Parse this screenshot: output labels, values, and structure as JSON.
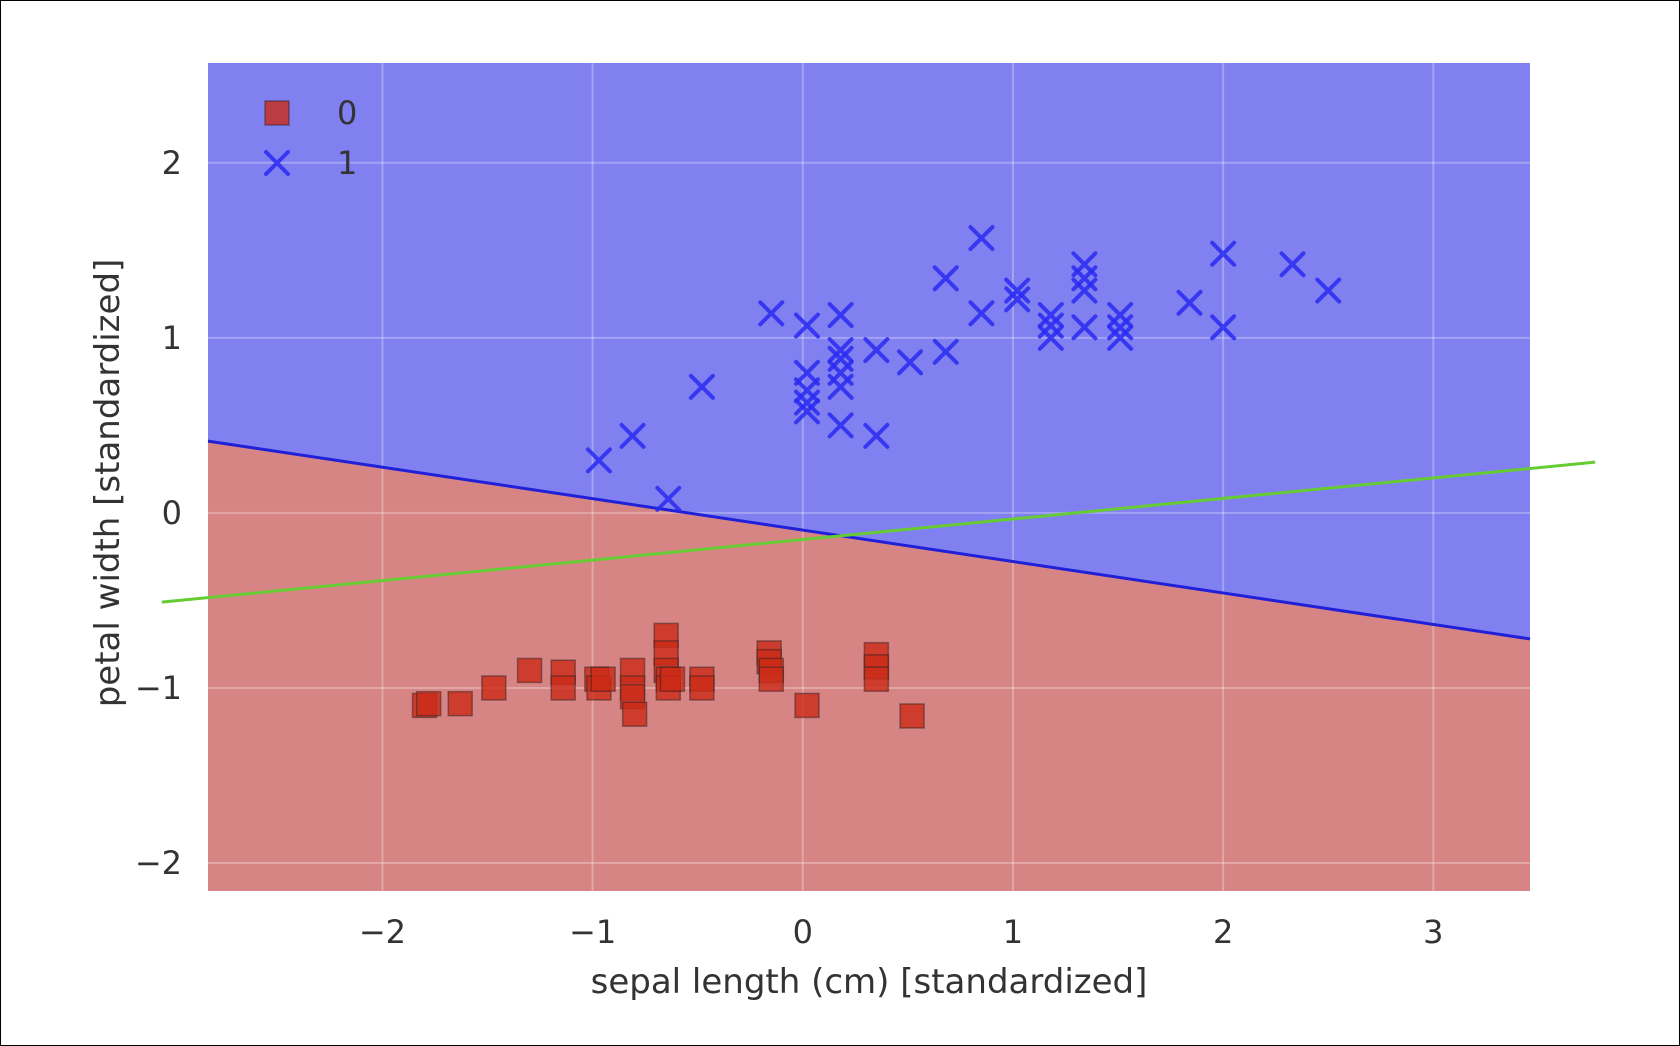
{
  "chart_data": {
    "type": "scatter",
    "title": "",
    "xlabel": "sepal length (cm) [standardized]",
    "ylabel": "petal width [standardized]",
    "xlim": [
      -2.83,
      3.46
    ],
    "ylim": [
      -2.16,
      2.57
    ],
    "xticks": [
      -2,
      -1,
      0,
      1,
      2,
      3
    ],
    "yticks": [
      -2,
      -1,
      0,
      1,
      2
    ],
    "xtick_labels": [
      "−2",
      "−1",
      "0",
      "1",
      "2",
      "3"
    ],
    "ytick_labels": [
      "−2",
      "−1",
      "0",
      "1",
      "2"
    ],
    "grid": true,
    "legend_position": "top-left",
    "decision_regions": {
      "boundary": [
        [
          -2.83,
          0.41
        ],
        [
          3.46,
          -0.72
        ]
      ],
      "above_class": "1",
      "below_class": "0",
      "colors": {
        "0": "#d68484",
        "1": "#8080f0"
      }
    },
    "line": {
      "points": [
        [
          -3.05,
          -0.51
        ],
        [
          3.77,
          0.29
        ]
      ],
      "color": "#66cc33"
    },
    "series": [
      {
        "name": "0",
        "marker": "square",
        "color": "#cc2a18",
        "points": [
          [
            -1.8,
            -1.1
          ],
          [
            -1.78,
            -1.09
          ],
          [
            -1.63,
            -1.09
          ],
          [
            -1.47,
            -1.0
          ],
          [
            -1.3,
            -0.9
          ],
          [
            -1.14,
            -0.91
          ],
          [
            -1.14,
            -1.0
          ],
          [
            -0.98,
            -0.95
          ],
          [
            -0.97,
            -1.0
          ],
          [
            -0.95,
            -0.95
          ],
          [
            -0.81,
            -0.9
          ],
          [
            -0.81,
            -1.0
          ],
          [
            -0.81,
            -1.05
          ],
          [
            -0.8,
            -1.15
          ],
          [
            -0.65,
            -0.7
          ],
          [
            -0.65,
            -0.8
          ],
          [
            -0.65,
            -0.9
          ],
          [
            -0.64,
            -0.95
          ],
          [
            -0.64,
            -1.0
          ],
          [
            -0.62,
            -0.95
          ],
          [
            -0.48,
            -0.95
          ],
          [
            -0.48,
            -1.0
          ],
          [
            -0.16,
            -0.8
          ],
          [
            -0.16,
            -0.85
          ],
          [
            -0.15,
            -0.9
          ],
          [
            -0.15,
            -0.95
          ],
          [
            0.02,
            -1.1
          ],
          [
            0.35,
            -0.81
          ],
          [
            0.35,
            -0.88
          ],
          [
            0.35,
            -0.95
          ],
          [
            0.52,
            -1.16
          ]
        ]
      },
      {
        "name": "1",
        "marker": "x",
        "color": "#2a2af2",
        "points": [
          [
            -0.97,
            0.3
          ],
          [
            -0.81,
            0.44
          ],
          [
            -0.64,
            0.08
          ],
          [
            -0.48,
            0.72
          ],
          [
            -0.15,
            1.14
          ],
          [
            0.02,
            1.07
          ],
          [
            0.02,
            0.8
          ],
          [
            0.02,
            0.7
          ],
          [
            0.02,
            0.63
          ],
          [
            0.02,
            0.58
          ],
          [
            0.18,
            1.13
          ],
          [
            0.18,
            0.93
          ],
          [
            0.18,
            0.88
          ],
          [
            0.18,
            0.8
          ],
          [
            0.18,
            0.72
          ],
          [
            0.18,
            0.5
          ],
          [
            0.35,
            0.93
          ],
          [
            0.35,
            0.44
          ],
          [
            0.51,
            0.86
          ],
          [
            0.68,
            1.34
          ],
          [
            0.68,
            0.92
          ],
          [
            0.85,
            1.57
          ],
          [
            0.85,
            1.14
          ],
          [
            1.02,
            1.27
          ],
          [
            1.02,
            1.22
          ],
          [
            1.18,
            1.13
          ],
          [
            1.18,
            1.07
          ],
          [
            1.18,
            1.0
          ],
          [
            1.34,
            1.42
          ],
          [
            1.34,
            1.34
          ],
          [
            1.34,
            1.27
          ],
          [
            1.34,
            1.06
          ],
          [
            1.51,
            1.13
          ],
          [
            1.51,
            1.06
          ],
          [
            1.51,
            1.0
          ],
          [
            1.84,
            1.2
          ],
          [
            2.0,
            1.48
          ],
          [
            2.0,
            1.06
          ],
          [
            2.33,
            1.42
          ],
          [
            2.5,
            1.27
          ]
        ]
      }
    ]
  }
}
